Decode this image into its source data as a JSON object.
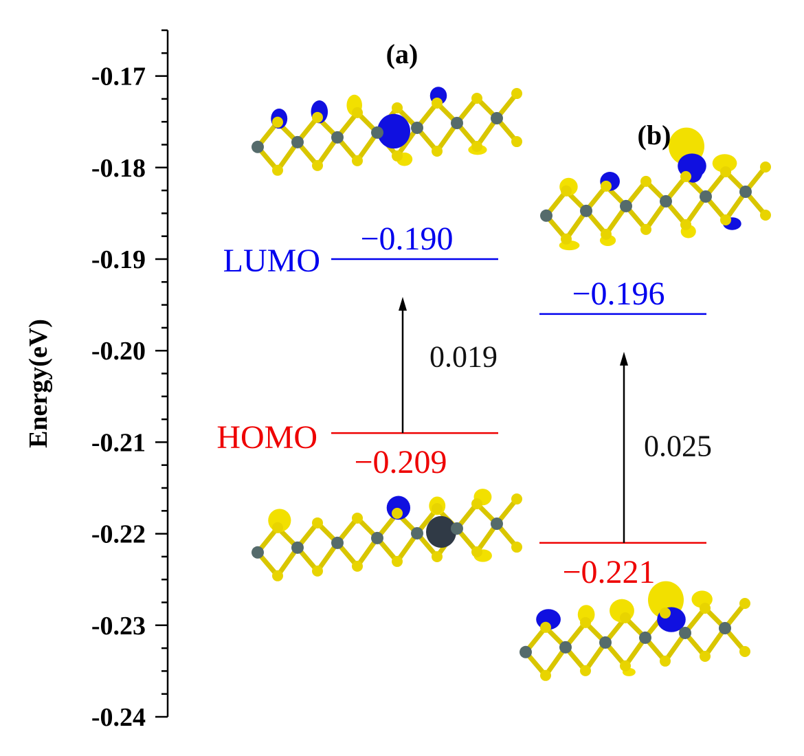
{
  "chart_data": {
    "type": "energy-level-diagram",
    "ylabel": "Energy(eV)",
    "ylim": [
      -0.24,
      -0.165
    ],
    "yticks": [
      -0.17,
      -0.18,
      -0.19,
      -0.2,
      -0.21,
      -0.22,
      -0.23,
      -0.24
    ],
    "ytick_labels": [
      "-0.17",
      "-0.18",
      "-0.19",
      "-0.20",
      "-0.21",
      "-0.22",
      "-0.23",
      "-0.24"
    ],
    "level_names": {
      "lumo": "LUMO",
      "homo": "HOMO"
    },
    "colors": {
      "lumo": "#0000ee",
      "homo": "#ee0000",
      "axis": "#000000",
      "arrow": "#000000"
    },
    "panels": [
      {
        "label": "(a)",
        "lumo": -0.19,
        "lumo_label": "−0.190",
        "homo": -0.209,
        "homo_label": "−0.209",
        "gap": 0.019,
        "gap_label": "0.019"
      },
      {
        "label": "(b)",
        "lumo": -0.196,
        "lumo_label": "−0.196",
        "homo": -0.221,
        "homo_label": "−0.221",
        "gap": 0.025,
        "gap_label": "0.025"
      }
    ],
    "orbital_images": [
      "a-lumo-orbital",
      "a-homo-orbital",
      "b-lumo-orbital",
      "b-homo-orbital"
    ]
  }
}
